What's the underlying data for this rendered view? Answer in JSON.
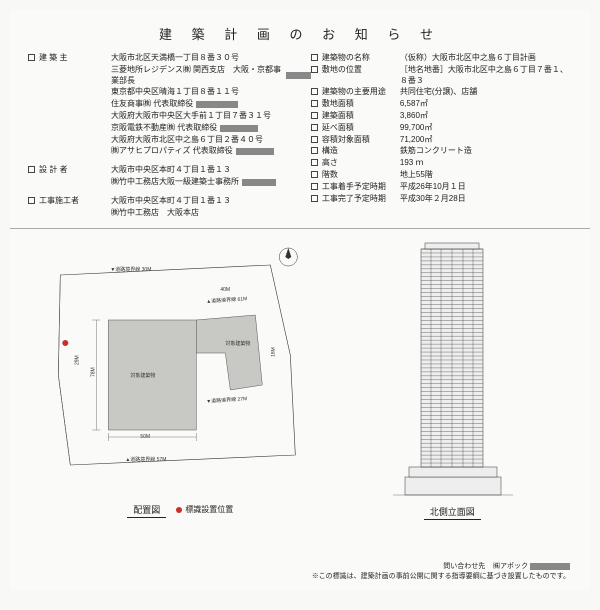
{
  "title": "建 築 計 画 の お 知 ら せ",
  "left_fields": {
    "owner": {
      "label": "建 築 主",
      "lines": [
        {
          "text": "大阪市北区天満橋一丁目８番３０号",
          "redact_w": 0
        },
        {
          "text": "三菱地所レジデンス㈱ 関西支店　大阪・京都事業部長",
          "redact_w": 28
        },
        {
          "text": "東京都中央区晴海１丁目８番１１号",
          "redact_w": 0
        },
        {
          "text": "住友商事㈱ 代表取締役",
          "redact_w": 42
        },
        {
          "text": "大阪府大阪市中央区大手前１丁目７番３１号",
          "redact_w": 0
        },
        {
          "text": "京阪電鉄不動産㈱ 代表取締役",
          "redact_w": 38
        },
        {
          "text": "大阪府大阪市北区中之島６丁目２番４０号",
          "redact_w": 0
        },
        {
          "text": "㈱アサヒプロパティズ 代表取締役",
          "redact_w": 38
        }
      ]
    },
    "designer": {
      "label": "設 計 者",
      "lines": [
        {
          "text": "大阪市中央区本町４丁目１番１３",
          "redact_w": 0
        },
        {
          "text": "㈱竹中工務店大阪一級建築士事務所",
          "redact_w": 34
        }
      ]
    },
    "contractor": {
      "label": "工事施工者",
      "lines": [
        {
          "text": "大阪市中央区本町４丁目１番１３",
          "redact_w": 0
        },
        {
          "text": "㈱竹中工務店　大阪本店",
          "redact_w": 0
        }
      ]
    }
  },
  "right_fields": [
    {
      "label": "建築物の名称",
      "value": "（仮称）大阪市北区中之島６丁目計画"
    },
    {
      "label": "敷地の位置",
      "value": "［地名地番］大阪市北区中之島６丁目７番１、８番３"
    },
    {
      "label": "建築物の主要用途",
      "value": "共同住宅(分譲)、店舗"
    },
    {
      "label": "敷地面積",
      "value": "6,587㎡"
    },
    {
      "label": "建築面積",
      "value": "3,860㎡"
    },
    {
      "label": "延べ面積",
      "value": "99,700㎡"
    },
    {
      "label": "容積対象面積",
      "value": "71,200㎡"
    },
    {
      "label": "構造",
      "value": "鉄筋コンクリート造"
    },
    {
      "label": "高さ",
      "value": "193 ｍ"
    },
    {
      "label": "階数",
      "value": "地上55階"
    },
    {
      "label": "工事着手予定時期",
      "value": "平成26年10月１日"
    },
    {
      "label": "工事完了予定時期",
      "value": "平成30年２月28日"
    }
  ],
  "map": {
    "caption": "配置図",
    "legend": "標識設置位置",
    "bldg_label": "対象建築物",
    "dims": {
      "road_n": "▼道路境界線 30M",
      "road_s": "▲道路境界線 57M",
      "span_e": "▲道路境界線 61M",
      "span_e2": "▼道路境界線 27M",
      "w_main": "50M",
      "h_main": "78M",
      "gap": "29M",
      "h_side": "18M",
      "w_top": "40M"
    }
  },
  "elevation": {
    "caption": "北側立面図",
    "floors": 55
  },
  "footer": {
    "contact_label": "問い合わせ先",
    "contact": "㈱アポック",
    "note": "※この標識は、建築計画の事前公開に関する指導要綱に基づき設置したものです。"
  }
}
